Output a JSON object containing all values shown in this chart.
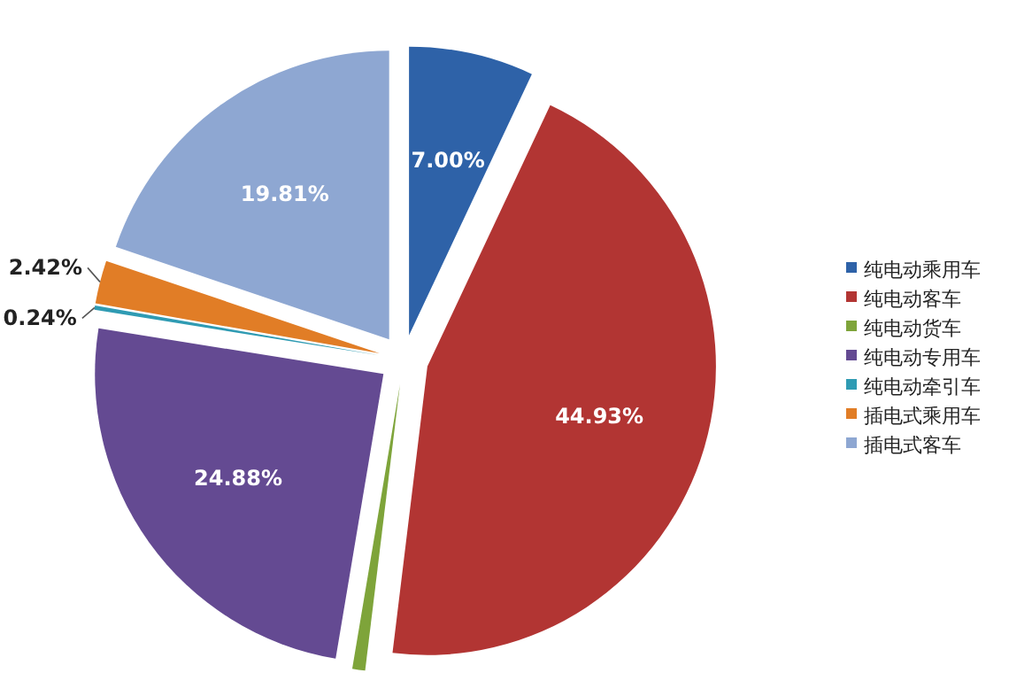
{
  "chart_data": {
    "type": "pie",
    "categories": [
      "纯电动乘用车",
      "纯电动客车",
      "纯电动货车",
      "纯电动专用车",
      "纯电动牵引车",
      "插电式乘用车",
      "插电式客车"
    ],
    "values": [
      7.0,
      44.93,
      0.72,
      24.88,
      0.24,
      2.42,
      19.81
    ],
    "value_labels": [
      "7.00%",
      "44.93%",
      null,
      "24.88%",
      "0.24%",
      "2.42%",
      "19.81%"
    ],
    "colors": [
      "#2e62a8",
      "#b23533",
      "#7ea43a",
      "#644a92",
      "#2f9bb3",
      "#e17d26",
      "#8ea7d2"
    ],
    "legend": "right"
  }
}
